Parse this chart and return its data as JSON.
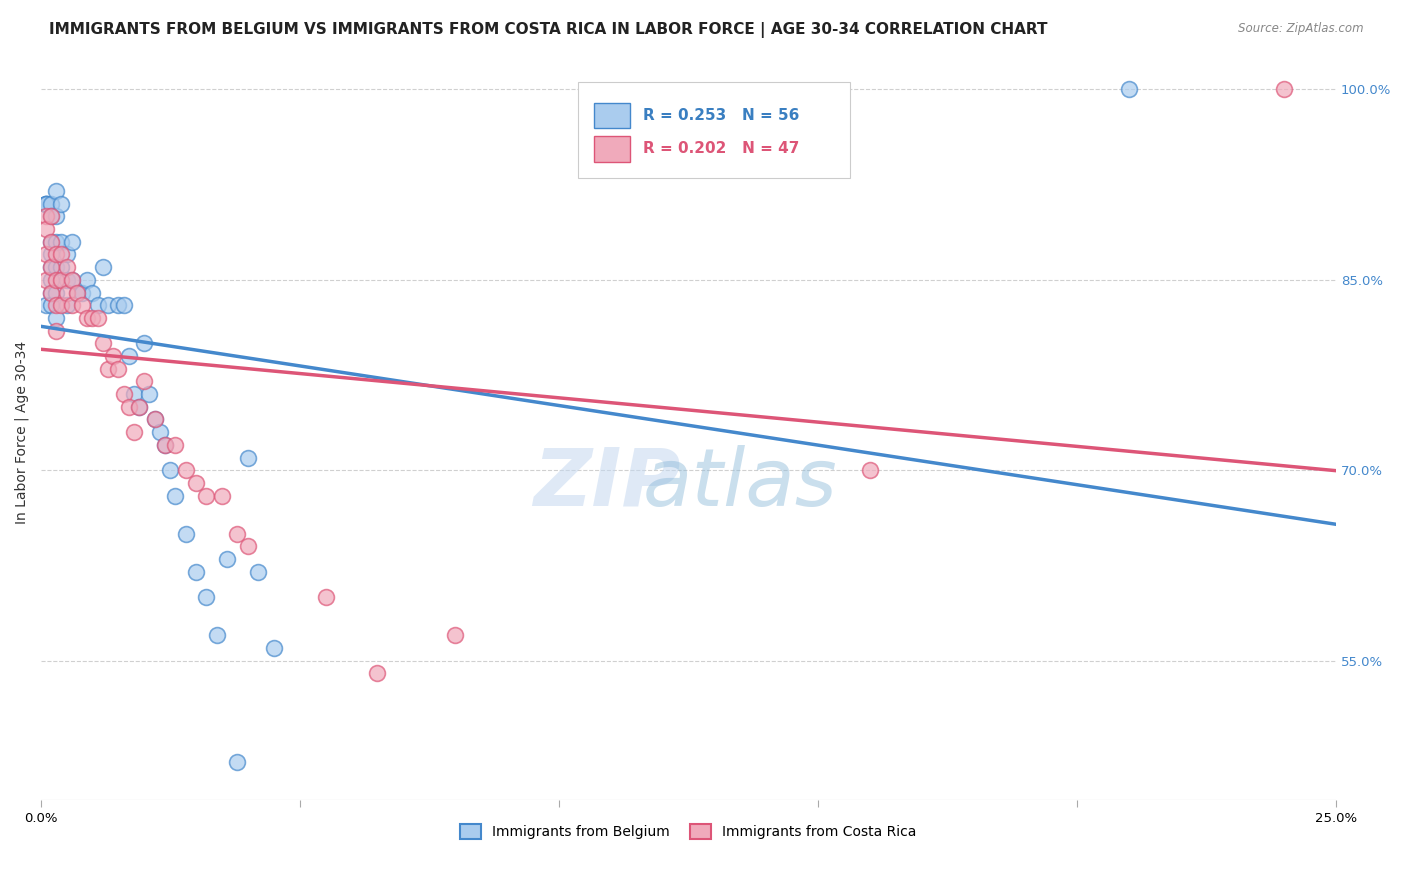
{
  "title": "IMMIGRANTS FROM BELGIUM VS IMMIGRANTS FROM COSTA RICA IN LABOR FORCE | AGE 30-34 CORRELATION CHART",
  "source": "Source: ZipAtlas.com",
  "ylabel": "In Labor Force | Age 30-34",
  "xlim": [
    0.0,
    0.25
  ],
  "ylim": [
    0.44,
    1.02
  ],
  "yticks_right": [
    0.55,
    0.7,
    0.85,
    1.0
  ],
  "ytick_right_labels": [
    "55.0%",
    "70.0%",
    "85.0%",
    "100.0%"
  ],
  "grid_color": "#d0d0d0",
  "background_color": "#ffffff",
  "belgium_color": "#aaccee",
  "costarica_color": "#f0aabb",
  "belgium_line_color": "#4488cc",
  "costarica_line_color": "#dd5577",
  "legend_R_belgium": "R = 0.253",
  "legend_N_belgium": "N = 56",
  "legend_R_costarica": "R = 0.202",
  "legend_N_costarica": "N = 47",
  "legend_label_belgium": "Immigrants from Belgium",
  "legend_label_costarica": "Immigrants from Costa Rica",
  "belgium_x": [
    0.001,
    0.001,
    0.001,
    0.001,
    0.001,
    0.002,
    0.002,
    0.002,
    0.002,
    0.002,
    0.002,
    0.002,
    0.002,
    0.003,
    0.003,
    0.003,
    0.003,
    0.003,
    0.003,
    0.004,
    0.004,
    0.004,
    0.005,
    0.005,
    0.005,
    0.006,
    0.006,
    0.007,
    0.008,
    0.009,
    0.01,
    0.011,
    0.012,
    0.013,
    0.015,
    0.016,
    0.017,
    0.018,
    0.019,
    0.02,
    0.021,
    0.022,
    0.023,
    0.024,
    0.025,
    0.026,
    0.028,
    0.03,
    0.032,
    0.034,
    0.036,
    0.038,
    0.04,
    0.042,
    0.045,
    0.21
  ],
  "belgium_y": [
    0.91,
    0.91,
    0.91,
    0.91,
    0.83,
    0.91,
    0.9,
    0.88,
    0.87,
    0.86,
    0.85,
    0.84,
    0.83,
    0.92,
    0.9,
    0.88,
    0.86,
    0.84,
    0.82,
    0.91,
    0.88,
    0.86,
    0.87,
    0.85,
    0.83,
    0.88,
    0.85,
    0.84,
    0.84,
    0.85,
    0.84,
    0.83,
    0.86,
    0.83,
    0.83,
    0.83,
    0.79,
    0.76,
    0.75,
    0.8,
    0.76,
    0.74,
    0.73,
    0.72,
    0.7,
    0.68,
    0.65,
    0.62,
    0.6,
    0.57,
    0.63,
    0.47,
    0.71,
    0.62,
    0.56,
    1.0
  ],
  "costarica_x": [
    0.001,
    0.001,
    0.001,
    0.001,
    0.002,
    0.002,
    0.002,
    0.002,
    0.003,
    0.003,
    0.003,
    0.003,
    0.004,
    0.004,
    0.004,
    0.005,
    0.005,
    0.006,
    0.006,
    0.007,
    0.008,
    0.009,
    0.01,
    0.011,
    0.012,
    0.013,
    0.014,
    0.015,
    0.016,
    0.017,
    0.018,
    0.019,
    0.02,
    0.022,
    0.024,
    0.026,
    0.028,
    0.03,
    0.032,
    0.035,
    0.038,
    0.04,
    0.055,
    0.065,
    0.08,
    0.16,
    0.24
  ],
  "costarica_y": [
    0.9,
    0.89,
    0.87,
    0.85,
    0.9,
    0.88,
    0.86,
    0.84,
    0.87,
    0.85,
    0.83,
    0.81,
    0.87,
    0.85,
    0.83,
    0.86,
    0.84,
    0.85,
    0.83,
    0.84,
    0.83,
    0.82,
    0.82,
    0.82,
    0.8,
    0.78,
    0.79,
    0.78,
    0.76,
    0.75,
    0.73,
    0.75,
    0.77,
    0.74,
    0.72,
    0.72,
    0.7,
    0.69,
    0.68,
    0.68,
    0.65,
    0.64,
    0.6,
    0.54,
    0.57,
    0.7,
    1.0
  ],
  "watermark_zip": "ZIP",
  "watermark_atlas": "atlas",
  "title_fontsize": 11,
  "axis_label_fontsize": 10,
  "tick_fontsize": 9.5
}
